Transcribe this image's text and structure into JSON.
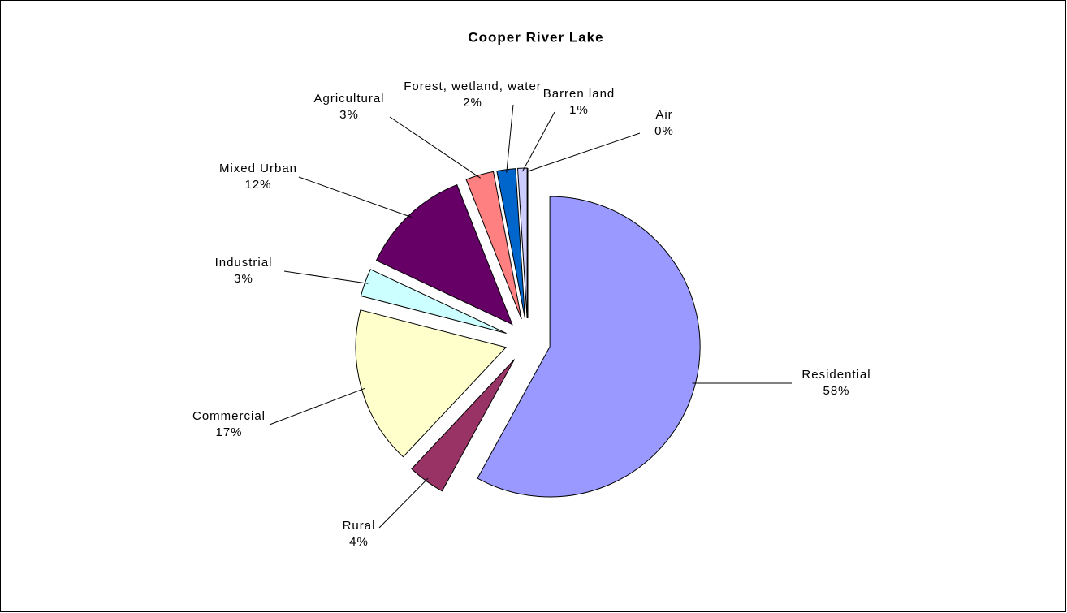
{
  "chart_data": {
    "type": "pie",
    "title": "Cooper River Lake",
    "categories": [
      "Residential",
      "Rural",
      "Commercial",
      "Industrial",
      "Mixed Urban",
      "Agricultural",
      "Forest, wetland, water",
      "Barren land",
      "Air"
    ],
    "values": [
      58,
      4,
      17,
      3,
      12,
      3,
      2,
      1,
      0
    ],
    "value_labels": [
      "58%",
      "4%",
      "17%",
      "3%",
      "12%",
      "3%",
      "2%",
      "1%",
      "0%"
    ],
    "colors": [
      "#9999ff",
      "#993366",
      "#ffffcc",
      "#ccffff",
      "#660066",
      "#ff8080",
      "#0066cc",
      "#ccccff",
      "#000080"
    ]
  }
}
